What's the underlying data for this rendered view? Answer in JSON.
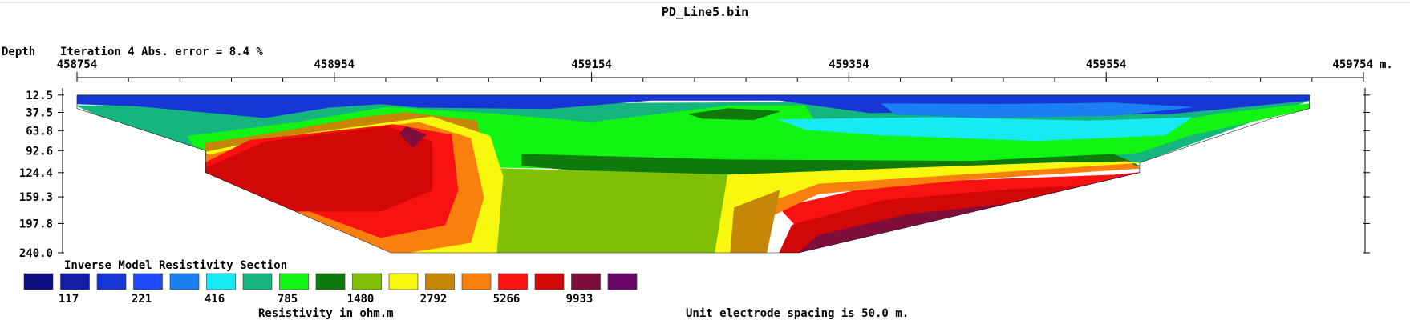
{
  "chart_data": {
    "type": "heatmap",
    "title": "PD_Line5.bin",
    "iteration_text": "Iteration 4 Abs. error = 8.4 %",
    "depth_label": "Depth",
    "section_title": "Inverse Model Resistivity Section",
    "colorbar_label": "Resistivity in ohm.m",
    "spacing_text": "Unit electrode spacing is 50.0 m.",
    "x_unit": "m.",
    "x_ticks": [
      "458754",
      "458954",
      "459154",
      "459354",
      "459554",
      "459754"
    ],
    "x_range": [
      458754,
      459754
    ],
    "depth_ticks": [
      "12.5",
      "37.5",
      "63.8",
      "92.6",
      "124.4",
      "159.3",
      "197.8",
      "240.0"
    ],
    "depth_range": [
      0,
      240
    ],
    "legend_colors": [
      "#0c0c7e",
      "#101fa6",
      "#1636d8",
      "#1f48f8",
      "#1a7ff2",
      "#16eaf5",
      "#15b57e",
      "#12f514",
      "#0f7a0c",
      "#7fbf06",
      "#f8f80e",
      "#c68708",
      "#fa800e",
      "#fa1212",
      "#d20808",
      "#7f0e3b",
      "#6b0668"
    ],
    "legend_ticks": [
      "117",
      "221",
      "416",
      "785",
      "1480",
      "2792",
      "5266",
      "9933"
    ],
    "section": {
      "outline": [
        [
          458754,
          12.5
        ],
        [
          459712,
          12.5
        ],
        [
          459712,
          32
        ],
        [
          459680,
          48
        ],
        [
          459580,
          110
        ],
        [
          459580,
          124.4
        ],
        [
          459315,
          240
        ],
        [
          458998,
          240
        ],
        [
          458854,
          124.4
        ],
        [
          458854,
          92.6
        ],
        [
          458754,
          32
        ]
      ],
      "regions": [
        {
          "color": "#15b57e",
          "points": [
            [
              458754,
              28
            ],
            [
              459712,
              20
            ],
            [
              459580,
              110
            ],
            [
              458854,
              110
            ]
          ]
        },
        {
          "color": "#12f514",
          "points": [
            [
              458840,
              72
            ],
            [
              458925,
              52
            ],
            [
              458995,
              30
            ],
            [
              459080,
              40
            ],
            [
              459154,
              52
            ],
            [
              459260,
              28
            ],
            [
              459320,
              28
            ],
            [
              459330,
              60
            ],
            [
              459440,
              75
            ],
            [
              459540,
              72
            ],
            [
              459640,
              40
            ],
            [
              459712,
              25
            ],
            [
              459712,
              32
            ],
            [
              459620,
              70
            ],
            [
              459580,
              95
            ],
            [
              459500,
              110
            ],
            [
              459200,
              118
            ],
            [
              459130,
              118
            ],
            [
              458854,
              110
            ]
          ]
        },
        {
          "color": "#0f7a0c",
          "points": [
            [
              459100,
              98
            ],
            [
              459260,
              106
            ],
            [
              459450,
              108
            ],
            [
              459560,
              98
            ],
            [
              459580,
              115
            ],
            [
              459480,
              122
            ],
            [
              459260,
              128
            ],
            [
              459160,
              124
            ],
            [
              459100,
              114
            ]
          ]
        },
        {
          "color": "#7fbf06",
          "points": [
            [
              459070,
              118
            ],
            [
              459270,
              128
            ],
            [
              459250,
              240
            ],
            [
              459020,
              240
            ],
            [
              459040,
              160
            ]
          ]
        },
        {
          "color": "#c68708",
          "points": [
            [
              458854,
              82
            ],
            [
              458905,
              68
            ],
            [
              458975,
              45
            ],
            [
              459010,
              38
            ],
            [
              459065,
              50
            ],
            [
              459070,
              110
            ],
            [
              459065,
              240
            ],
            [
              459000,
              240
            ],
            [
              458854,
              124.4
            ]
          ]
        },
        {
          "color": "#f8f80e",
          "points": [
            [
              458854,
              95
            ],
            [
              458880,
              85
            ],
            [
              458905,
              75
            ],
            [
              459030,
              44
            ],
            [
              459075,
              72
            ],
            [
              459085,
              130
            ],
            [
              459080,
              240
            ],
            [
              458998,
              240
            ]
          ]
        },
        {
          "color": "#fa800e",
          "points": [
            [
              458854,
              100
            ],
            [
              458920,
              72
            ],
            [
              459020,
              52
            ],
            [
              459060,
              75
            ],
            [
              459070,
              160
            ],
            [
              459060,
              225
            ],
            [
              459010,
              240
            ],
            [
              458998,
              240
            ],
            [
              458854,
              124.4
            ]
          ]
        },
        {
          "color": "#fa1212",
          "points": [
            [
              458854,
              110
            ],
            [
              458888,
              78
            ],
            [
              459000,
              55
            ],
            [
              459045,
              70
            ],
            [
              459050,
              150
            ],
            [
              459040,
              200
            ],
            [
              458990,
              218
            ],
            [
              458854,
              124.4
            ]
          ]
        },
        {
          "color": "#d20808",
          "points": [
            [
              458854,
              118
            ],
            [
              458900,
              80
            ],
            [
              458995,
              58
            ],
            [
              459030,
              80
            ],
            [
              459030,
              150
            ],
            [
              458990,
              180
            ],
            [
              458920,
              180
            ],
            [
              458854,
              124.4
            ]
          ]
        },
        {
          "color": "#7f0e3b",
          "points": [
            [
              459010,
              58
            ],
            [
              459025,
              70
            ],
            [
              459015,
              88
            ],
            [
              459005,
              68
            ]
          ]
        },
        {
          "color": "#1636d8",
          "points": [
            [
              458754,
              12.5
            ],
            [
              459712,
              12.5
            ],
            [
              459712,
              20
            ],
            [
              459600,
              40
            ],
            [
              459470,
              36
            ],
            [
              459370,
              38
            ],
            [
              459300,
              20
            ],
            [
              459200,
              20
            ],
            [
              459120,
              32
            ],
            [
              459020,
              30
            ],
            [
              458990,
              25
            ],
            [
              458950,
              30
            ],
            [
              458900,
              45
            ],
            [
              458800,
              28
            ],
            [
              458754,
              25
            ]
          ]
        },
        {
          "color": "#1a7ff2",
          "points": [
            [
              459380,
              25
            ],
            [
              459470,
              26
            ],
            [
              459560,
              24
            ],
            [
              459620,
              30
            ],
            [
              459560,
              42
            ],
            [
              459460,
              45
            ],
            [
              459390,
              40
            ]
          ]
        },
        {
          "color": "#0f7a0c",
          "points": [
            [
              459230,
              40
            ],
            [
              459260,
              32
            ],
            [
              459300,
              36
            ],
            [
              459280,
              48
            ],
            [
              459240,
              46
            ]
          ]
        },
        {
          "color": "#16eaf5",
          "points": [
            [
              459300,
              48
            ],
            [
              459420,
              45
            ],
            [
              459540,
              50
            ],
            [
              459620,
              45
            ],
            [
              459600,
              70
            ],
            [
              459500,
              78
            ],
            [
              459380,
              70
            ],
            [
              459320,
              62
            ]
          ]
        },
        {
          "color": "#fa1212",
          "points": [
            [
              459300,
              175
            ],
            [
              459360,
              150
            ],
            [
              459440,
              136
            ],
            [
              459560,
              128
            ],
            [
              459580,
              124.4
            ],
            [
              459560,
              140
            ],
            [
              459440,
              195
            ],
            [
              459320,
              215
            ]
          ]
        },
        {
          "color": "#fa800e",
          "points": [
            [
              459280,
              140
            ],
            [
              459380,
              128
            ],
            [
              459500,
              118
            ],
            [
              459570,
              108
            ],
            [
              459580,
              118
            ],
            [
              459440,
              135
            ],
            [
              459330,
              155
            ],
            [
              459290,
              190
            ]
          ]
        },
        {
          "color": "#f8f80e",
          "points": [
            [
              459260,
              128
            ],
            [
              459400,
              118
            ],
            [
              459520,
              110
            ],
            [
              459580,
              110
            ],
            [
              459480,
              122
            ],
            [
              459330,
              140
            ],
            [
              459280,
              175
            ],
            [
              459265,
              240
            ],
            [
              459250,
              240
            ]
          ]
        },
        {
          "color": "#c68708",
          "points": [
            [
              459265,
              175
            ],
            [
              459300,
              150
            ],
            [
              459290,
              240
            ],
            [
              459262,
              240
            ]
          ]
        },
        {
          "color": "#d20808",
          "points": [
            [
              459310,
              200
            ],
            [
              459380,
              165
            ],
            [
              459470,
              150
            ],
            [
              459560,
              140
            ],
            [
              459580,
              124.4
            ],
            [
              459480,
              175
            ],
            [
              459360,
              225
            ],
            [
              459325,
              240
            ],
            [
              459300,
              240
            ]
          ]
        },
        {
          "color": "#7f0e3b",
          "points": [
            [
              459330,
              215
            ],
            [
              459400,
              185
            ],
            [
              459500,
              165
            ],
            [
              459575,
              135
            ],
            [
              459580,
              124.4
            ],
            [
              459315,
              240
            ]
          ]
        },
        {
          "color": "#6b0668",
          "points": [
            [
              459380,
              240
            ],
            [
              459440,
              205
            ],
            [
              459520,
              180
            ],
            [
              459580,
              150
            ],
            [
              459580,
              124.4
            ],
            [
              459315,
              240
            ]
          ]
        }
      ]
    }
  }
}
